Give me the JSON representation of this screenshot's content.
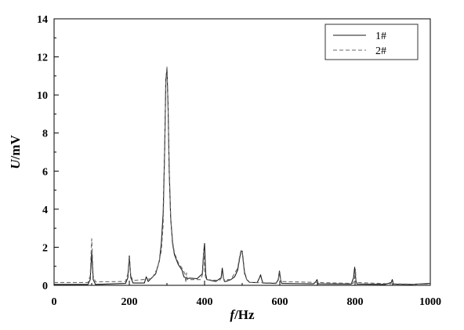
{
  "chart_data": {
    "type": "line",
    "title": "",
    "xlabel": {
      "var": "f",
      "unit": "/Hz"
    },
    "ylabel": {
      "var": "U",
      "unit": "/mV"
    },
    "xlim": [
      0,
      1000
    ],
    "ylim": [
      0,
      14
    ],
    "x_ticks": [
      0,
      200,
      400,
      600,
      800,
      1000
    ],
    "y_ticks": [
      0,
      2,
      4,
      6,
      8,
      10,
      12,
      14
    ],
    "grid": false,
    "legend_position": "top-right",
    "series": [
      {
        "name": "1#",
        "style": "solid",
        "color": "#1a1a1a",
        "x": [
          0,
          90,
          96,
          100,
          104,
          110,
          190,
          196,
          200,
          204,
          210,
          240,
          245,
          250,
          270,
          280,
          285,
          290,
          294,
          297,
          300,
          303,
          306,
          310,
          315,
          320,
          330,
          340,
          345,
          350,
          355,
          360,
          380,
          394,
          397,
          400,
          403,
          406,
          430,
          444,
          447,
          450,
          453,
          456,
          470,
          480,
          488,
          494,
          497,
          500,
          503,
          506,
          512,
          520,
          540,
          546,
          549,
          552,
          555,
          590,
          596,
          599,
          602,
          605,
          690,
          696,
          699,
          702,
          790,
          796,
          799,
          802,
          805,
          880,
          896,
          899,
          902,
          950,
          1000
        ],
        "y": [
          0.05,
          0.05,
          0.3,
          1.75,
          0.3,
          0.05,
          0.1,
          0.4,
          1.55,
          0.4,
          0.12,
          0.12,
          0.45,
          0.2,
          0.6,
          1.3,
          2.2,
          3.8,
          7.2,
          10.8,
          11.4,
          9.5,
          6.0,
          3.5,
          2.2,
          1.6,
          1.1,
          0.8,
          0.45,
          0.4,
          0.35,
          0.38,
          0.35,
          0.6,
          1.6,
          2.2,
          0.6,
          0.3,
          0.2,
          0.4,
          0.9,
          0.4,
          0.2,
          0.2,
          0.3,
          0.45,
          0.8,
          1.5,
          1.8,
          1.8,
          1.3,
          0.7,
          0.3,
          0.15,
          0.15,
          0.4,
          0.55,
          0.3,
          0.12,
          0.1,
          0.3,
          0.75,
          0.3,
          0.1,
          0.08,
          0.2,
          0.3,
          0.08,
          0.07,
          0.4,
          0.95,
          0.3,
          0.07,
          0.05,
          0.15,
          0.3,
          0.06,
          0.05,
          0.1
        ]
      },
      {
        "name": "2#",
        "style": "dashed",
        "color": "#6a6a6a",
        "x": [
          0,
          90,
          96,
          100,
          104,
          110,
          190,
          196,
          200,
          204,
          210,
          260,
          275,
          285,
          290,
          294,
          297,
          300,
          303,
          306,
          310,
          315,
          320,
          330,
          340,
          348,
          350,
          352,
          354,
          360,
          390,
          395,
          398,
          401,
          404,
          440,
          448,
          452,
          470,
          488,
          494,
          497,
          500,
          503,
          506,
          512,
          520,
          590,
          597,
          600,
          603,
          795,
          799,
          801,
          803,
          895,
          899,
          902,
          950,
          1000
        ],
        "y": [
          0.15,
          0.15,
          0.5,
          2.45,
          0.5,
          0.18,
          0.2,
          0.6,
          1.45,
          0.5,
          0.25,
          0.35,
          0.9,
          1.8,
          3.2,
          7.0,
          10.6,
          11.5,
          9.4,
          6.0,
          3.6,
          2.3,
          1.7,
          1.2,
          0.9,
          0.6,
          0.15,
          0.65,
          0.3,
          0.3,
          0.3,
          0.6,
          1.8,
          0.6,
          0.3,
          0.25,
          0.5,
          0.3,
          0.3,
          0.9,
          1.6,
          1.85,
          1.7,
          1.2,
          0.6,
          0.3,
          0.15,
          0.12,
          0.4,
          0.7,
          0.2,
          0.1,
          0.35,
          0.85,
          0.15,
          0.08,
          0.22,
          0.08,
          0.06,
          0.06
        ]
      }
    ]
  }
}
